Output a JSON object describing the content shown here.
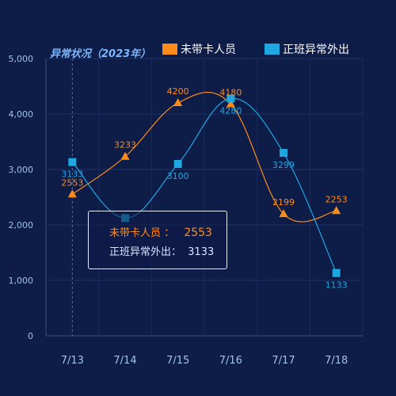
{
  "chart_data": {
    "type": "line",
    "title": "异常状况（2023年）",
    "categories": [
      "7/13",
      "7/14",
      "7/15",
      "7/16",
      "7/17",
      "7/18"
    ],
    "ylim": [
      0,
      5000
    ],
    "yticks": [
      0,
      1000,
      2000,
      3000,
      4000,
      5000
    ],
    "ytick_labels": [
      "0",
      "1,000",
      "2,000",
      "3,000",
      "4,000",
      "5,000"
    ],
    "grid": true,
    "legend_position": "top-right",
    "series": [
      {
        "name": "未带卡人员",
        "values": [
          2553,
          3233,
          4200,
          4180,
          2199,
          2253
        ],
        "color": "#ff8c1a",
        "marker": "triangle"
      },
      {
        "name": "正班异常外出",
        "values": [
          3133,
          2123,
          3100,
          4280,
          3299,
          1133
        ],
        "color": "#1ea7e1",
        "marker": "square"
      }
    ],
    "series_labels": [
      [
        "2553",
        "3233",
        "4200",
        "4180",
        "2199",
        "2253"
      ],
      [
        "3133",
        "",
        "3100",
        "4280",
        "3299",
        "1133"
      ]
    ]
  },
  "tooltip": {
    "row1_name": "未带卡人员",
    "row1_sep": "：",
    "row1_value": "2553",
    "row2_name": "正班异常外出：",
    "row2_value": "3133"
  }
}
